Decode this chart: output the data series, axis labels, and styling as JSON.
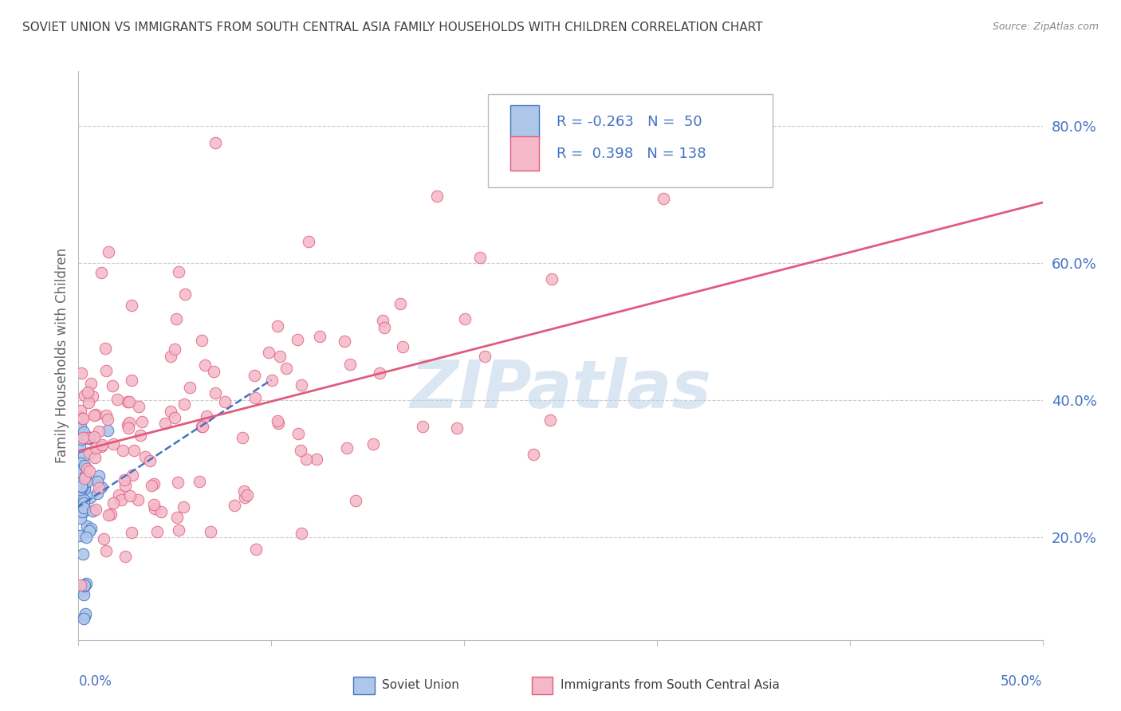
{
  "title": "SOVIET UNION VS IMMIGRANTS FROM SOUTH CENTRAL ASIA FAMILY HOUSEHOLDS WITH CHILDREN CORRELATION CHART",
  "source": "Source: ZipAtlas.com",
  "ylabel": "Family Households with Children",
  "y_ticks": [
    0.2,
    0.4,
    0.6,
    0.8
  ],
  "y_tick_labels": [
    "20.0%",
    "40.0%",
    "60.0%",
    "80.0%"
  ],
  "xlim": [
    0.0,
    0.5
  ],
  "ylim": [
    0.05,
    0.88
  ],
  "series": [
    {
      "name": "Soviet Union",
      "R": -0.263,
      "N": 50,
      "color_dot": "#aec6e8",
      "color_line": "#4472c4",
      "line_style": "--",
      "dot_edge_color": "#4472c4"
    },
    {
      "name": "Immigrants from South Central Asia",
      "R": 0.398,
      "N": 138,
      "color_dot": "#f4b8c8",
      "color_line": "#e05c7e",
      "line_style": "-",
      "dot_edge_color": "#e05c7e"
    }
  ],
  "watermark": "ZIPatlas",
  "background_color": "#ffffff",
  "grid_color": "#cccccc",
  "axis_label_color": "#4472c4",
  "title_color": "#404040",
  "legend_R_color": "#4472c4",
  "legend_N_color": "#4472c4"
}
